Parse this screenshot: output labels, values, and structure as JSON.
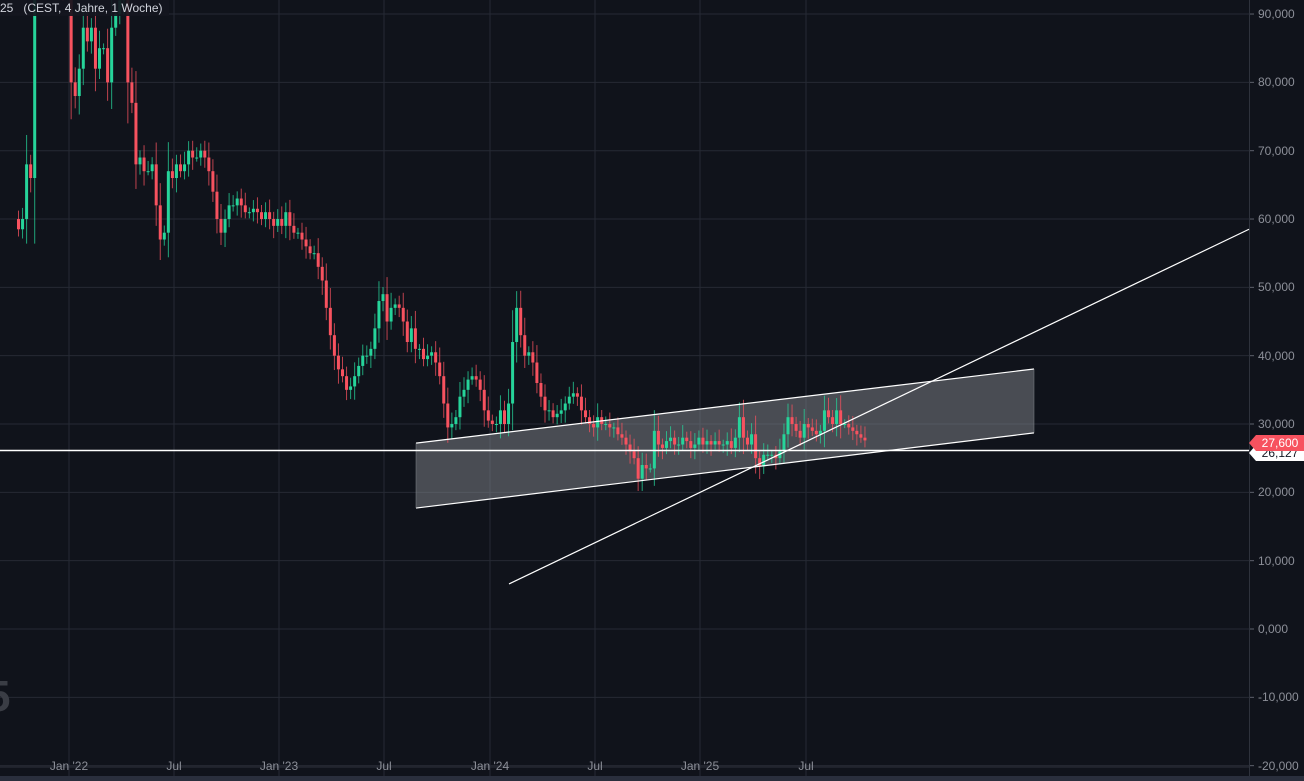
{
  "header": {
    "legend": "25   (CEST, 4 Jahre, 1 Woche)"
  },
  "watermark": "5",
  "colors": {
    "background": "#10131b",
    "grid": "#262a34",
    "up": "#26d49a",
    "down": "#f7525f",
    "drawing": "#ffffff",
    "channel_fill": "rgba(130,133,140,0.5)"
  },
  "chart_data": {
    "type": "candlestick",
    "interval": "1 Woche",
    "range": "4 Jahre",
    "ylim": [
      -20000,
      92000
    ],
    "grid": true,
    "y_ticks": [
      "90,000",
      "80,000",
      "70,000",
      "60,000",
      "50,000",
      "40,000",
      "30,000",
      "20,000",
      "10,000",
      "0,000",
      "-10,000",
      "-20,000"
    ],
    "y_tick_values": [
      90000,
      80000,
      70000,
      60000,
      50000,
      40000,
      30000,
      20000,
      10000,
      0,
      -10000,
      -20000
    ],
    "x_ticks": [
      "Jan '22",
      "Jul",
      "Jan '23",
      "Jul",
      "Jan '24",
      "Jul",
      "Jan '25",
      "Jul"
    ],
    "closes": [
      58500,
      60000,
      68000,
      66000,
      96000,
      97000,
      98000,
      96000,
      95000,
      97000,
      96000,
      94000,
      95000,
      80000,
      78000,
      82000,
      88000,
      86000,
      88000,
      82000,
      85000,
      85000,
      80000,
      88000,
      90000,
      92000,
      95000,
      80000,
      77000,
      68000,
      69000,
      67000,
      67000,
      68000,
      62000,
      57000,
      58000,
      67000,
      66000,
      68000,
      67000,
      68000,
      70000,
      69000,
      69000,
      70000,
      69000,
      67000,
      64000,
      60000,
      58000,
      60000,
      62000,
      62000,
      63000,
      62000,
      61000,
      61000,
      61500,
      61000,
      60000,
      61000,
      60000,
      59000,
      60000,
      59000,
      61000,
      59000,
      58000,
      58000,
      57000,
      56000,
      55000,
      55000,
      53000,
      51000,
      47000,
      43000,
      40000,
      38000,
      37000,
      35000,
      35500,
      37000,
      38500,
      40000,
      40000,
      41000,
      44000,
      48000,
      49000,
      45000,
      47000,
      47500,
      47000,
      45000,
      42000,
      44000,
      41000,
      41000,
      39500,
      40000,
      40500,
      39000,
      37000,
      33000,
      29500,
      30000,
      31000,
      34000,
      35000,
      36500,
      37000,
      36500,
      35000,
      32000,
      30500,
      30000,
      30000,
      32000,
      30000,
      33000,
      42000,
      47000,
      43000,
      40000,
      40500,
      39000,
      36000,
      34000,
      32000,
      32000,
      31000,
      31500,
      32000,
      33000,
      34000,
      34500,
      34000,
      32000,
      31000,
      30000,
      29500,
      31000,
      30000,
      30000,
      29500,
      29500,
      28500,
      28000,
      27000,
      26000,
      25000,
      22000,
      24000,
      23500,
      23500,
      29000,
      27000,
      26500,
      27500,
      28000,
      27000,
      27000,
      28000,
      27500,
      26500,
      27000,
      28000,
      27000,
      27500,
      27000,
      27500,
      27000,
      27000,
      27500,
      26500,
      28000,
      31000,
      28000,
      27000,
      28500,
      25000,
      23800,
      25500,
      25500,
      25500,
      25000,
      26000,
      28500,
      31000,
      30000,
      29000,
      28000,
      30000,
      29500,
      29000,
      28500,
      29000,
      32000,
      31000,
      30000,
      32000,
      30000,
      30000,
      29500,
      29000,
      28500,
      28000,
      27600
    ],
    "last_price": "27,600",
    "horizontal_line": {
      "value": 26127,
      "label": "26,127"
    },
    "channel": {
      "upper": [
        27200,
        38050
      ],
      "lower": [
        17700,
        28700
      ]
    },
    "trend_line": [
      6600,
      58500
    ]
  }
}
